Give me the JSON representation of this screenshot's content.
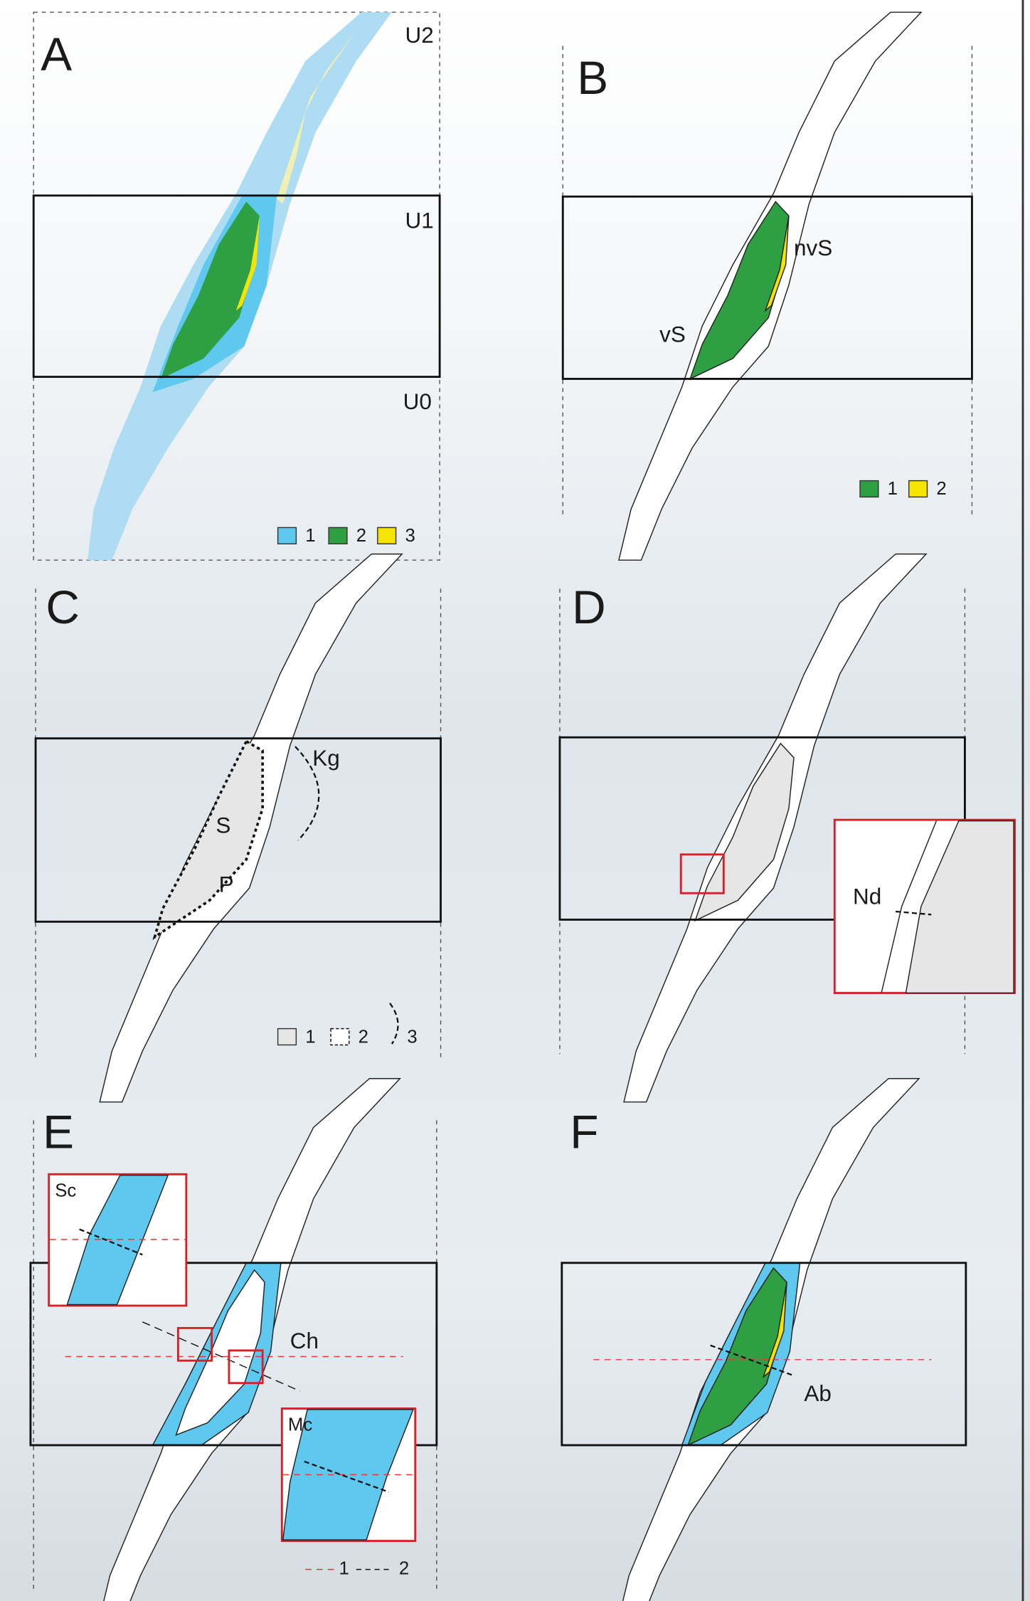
{
  "panels": {
    "a": {
      "letter": "A",
      "zones": [
        "U2",
        "U1",
        "U0"
      ],
      "legend": [
        "1",
        "2",
        "3"
      ]
    },
    "b": {
      "letter": "B",
      "labels": [
        "nvS",
        "vS"
      ],
      "legend": [
        "1",
        "2"
      ]
    },
    "c": {
      "letter": "C",
      "labels": [
        "S",
        "P",
        "Kg"
      ],
      "legend": [
        "1",
        "2",
        "3"
      ]
    },
    "d": {
      "letter": "D",
      "labels": [
        "Nd"
      ]
    },
    "e": {
      "letter": "E",
      "labels": [
        "Sc",
        "Ch",
        "Mc"
      ],
      "legend": [
        "1",
        "2"
      ]
    },
    "f": {
      "letter": "F",
      "labels": [
        "Ab"
      ]
    }
  }
}
